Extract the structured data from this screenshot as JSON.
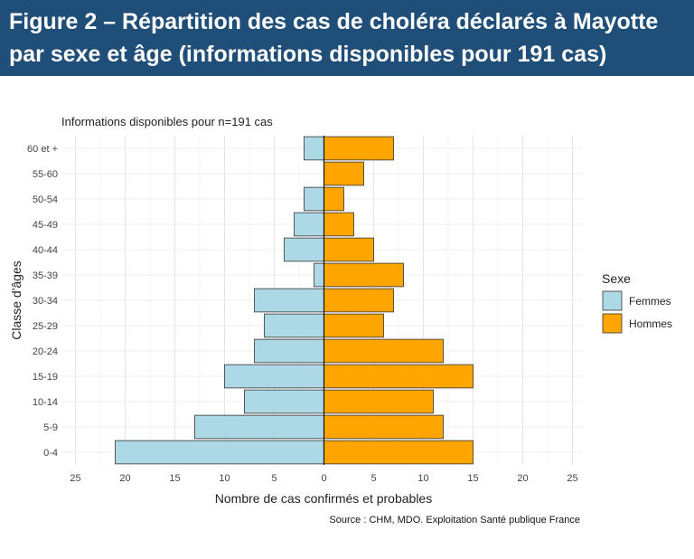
{
  "header": {
    "title": "Figure 2 – Répartition des cas de choléra déclarés à Mayotte par sexe et âge (informations disponibles pour 191 cas)"
  },
  "chart_data": {
    "type": "bar",
    "orientation": "horizontal-pyramid",
    "subtitle": "Informations disponibles pour n=191 cas",
    "categories": [
      "0-4",
      "5-9",
      "10-14",
      "15-19",
      "20-24",
      "25-29",
      "30-34",
      "35-39",
      "40-44",
      "45-49",
      "50-54",
      "55-60",
      "60 et +"
    ],
    "series": [
      {
        "name": "Femmes",
        "values": [
          21,
          13,
          8,
          10,
          7,
          6,
          7,
          1,
          4,
          3,
          2,
          0,
          2
        ],
        "color": "#add8e6"
      },
      {
        "name": "Hommes",
        "values": [
          15,
          12,
          11,
          15,
          12,
          6,
          7,
          8,
          5,
          3,
          2,
          4,
          7
        ],
        "color": "#ffa500"
      }
    ],
    "xlabel": "Nombre de cas confirmés et probables",
    "ylabel": "Classe d'âges",
    "xlim": [
      -25,
      25
    ],
    "xticks": [
      -25,
      -20,
      -15,
      -10,
      -5,
      0,
      5,
      10,
      15,
      20,
      25
    ],
    "xtick_labels": [
      "25",
      "20",
      "15",
      "10",
      "5",
      "0",
      "5",
      "10",
      "15",
      "20",
      "25"
    ],
    "legend": {
      "title": "Sexe",
      "position": "right"
    },
    "grid": true,
    "source": "Source : CHM, MDO. Exploitation Santé publique France"
  }
}
